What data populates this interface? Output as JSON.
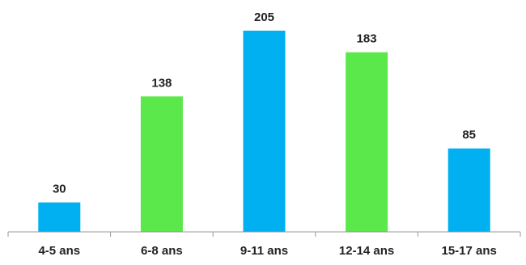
{
  "chart_data": {
    "type": "bar",
    "categories": [
      "4-5 ans",
      "6-8 ans",
      "9-11 ans",
      "12-14 ans",
      "15-17 ans"
    ],
    "values": [
      30,
      138,
      205,
      183,
      85
    ],
    "bar_colors": [
      "#00B0F0",
      "#5BE84A",
      "#00B0F0",
      "#5BE84A",
      "#00B0F0"
    ],
    "data_labels": [
      "30",
      "138",
      "205",
      "183",
      "85"
    ],
    "ylim": [
      0,
      220
    ],
    "grid": false,
    "legend": "none"
  }
}
